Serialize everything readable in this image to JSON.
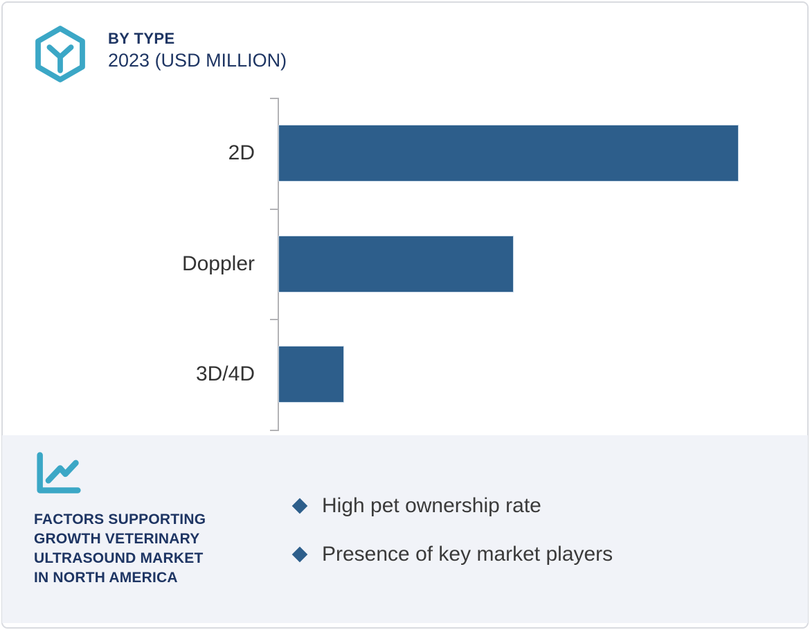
{
  "header": {
    "title": "BY TYPE",
    "subtitle": "2023 (USD MILLION)"
  },
  "chart_data": {
    "type": "bar",
    "orientation": "horizontal",
    "title": "BY TYPE",
    "subtitle": "2023 (USD MILLION)",
    "unit": "USD Million",
    "categories": [
      "2D",
      "Doppler",
      "3D/4D"
    ],
    "values": [
      100,
      51,
      14
    ],
    "values_note": "Bars carry no numeric labels in the image; values are estimated relative bar lengths as percent of the longest bar (2D).",
    "xlabel": "",
    "ylabel": "",
    "axis_value_labels_visible": false,
    "gridlines": false,
    "legend": null
  },
  "factors_panel": {
    "heading_lines": [
      "FACTORS SUPPORTING",
      "GROWTH VETERINARY",
      "ULTRASOUND MARKET",
      "IN NORTH AMERICA"
    ],
    "bullets": [
      "High pet ownership rate",
      "Presence of key market players"
    ]
  },
  "colors": {
    "bar": "#2D5E8B",
    "accent_teal": "#3BA7C6",
    "heading_navy": "#1E3563",
    "body_text": "#3A3A3A",
    "panel_bg": "#F1F3F8",
    "axis_gray": "#B3B3B6",
    "card_border": "#D9DBE0"
  }
}
